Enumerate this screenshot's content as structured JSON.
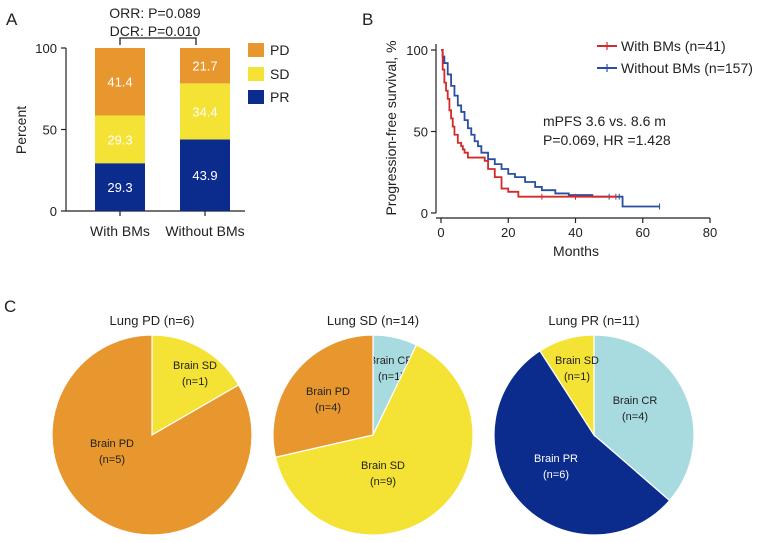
{
  "panels": {
    "a": "A",
    "b": "B",
    "c": "C"
  },
  "colors": {
    "pd": "#E8962E",
    "sd": "#F4E235",
    "pr": "#0B2C8C",
    "cr": "#A8DBE0",
    "with_bms": "#D42A2A",
    "without_bms": "#2A4FA2"
  },
  "chart_data": [
    {
      "type": "bar",
      "stacked": true,
      "ylabel": "Percent",
      "ylim": [
        0,
        100
      ],
      "yticks": [
        "0",
        "50",
        "100"
      ],
      "categories": [
        "With BMs",
        "Without BMs"
      ],
      "series": [
        {
          "name": "PR",
          "values": [
            29.3,
            43.9
          ],
          "labels": [
            "29.3",
            "43.9"
          ]
        },
        {
          "name": "SD",
          "values": [
            29.3,
            34.4
          ],
          "labels": [
            "29.3",
            "34.4"
          ]
        },
        {
          "name": "PD",
          "values": [
            41.4,
            21.7
          ],
          "labels": [
            "41.4",
            "21.7"
          ]
        }
      ],
      "legend": [
        "PD",
        "SD",
        "PR"
      ],
      "annotations": {
        "orr": "ORR: P=0.089",
        "dcr": "DCR: P=0.010"
      }
    },
    {
      "type": "line",
      "xlabel": "Months",
      "ylabel": "Progression-free survival, %",
      "xlim": [
        0,
        80
      ],
      "ylim": [
        0,
        100
      ],
      "xticks": [
        "0",
        "20",
        "40",
        "60",
        "80"
      ],
      "yticks": [
        "0",
        "50",
        "100"
      ],
      "legend": [
        "With BMs (n=41)",
        "Without BMs (n=157)"
      ],
      "annotation_lines": [
        "mPFS 3.6 vs. 8.6 m",
        "P=0.069, HR =1.428"
      ],
      "series": [
        {
          "name": "With BMs (n=41)",
          "x": [
            0,
            0.5,
            1,
            1.5,
            2,
            2.5,
            3,
            3.5,
            4,
            5,
            6,
            6.5,
            7,
            8,
            10,
            12,
            13,
            14,
            16,
            18,
            20,
            23,
            30,
            40,
            52
          ],
          "y": [
            100,
            88,
            80,
            75,
            70,
            63,
            58,
            53,
            48,
            43,
            41,
            39,
            37,
            34,
            34,
            34,
            32,
            27,
            22,
            15,
            13,
            10,
            10,
            10,
            10
          ]
        },
        {
          "name": "Without BMs (n=157)",
          "x": [
            0,
            0.5,
            1,
            2,
            3,
            4,
            5,
            6,
            7,
            8,
            9,
            10,
            11,
            12,
            14,
            16,
            18,
            20,
            22,
            25,
            28,
            30,
            34,
            38,
            45,
            50,
            53,
            54,
            65
          ],
          "y": [
            100,
            96,
            92,
            85,
            78,
            72,
            66,
            62,
            57,
            52,
            48,
            44,
            41,
            37,
            33,
            30,
            27,
            24,
            22,
            19,
            16,
            14,
            12,
            11,
            10,
            10,
            10,
            4,
            4
          ]
        }
      ]
    },
    {
      "type": "pie",
      "title": "Lung PD (n=6)",
      "slices": [
        {
          "name": "Brain SD",
          "n": "(n=1)",
          "value": 1,
          "color_key": "sd"
        },
        {
          "name": "Brain PD",
          "n": "(n=5)",
          "value": 5,
          "color_key": "pd"
        }
      ]
    },
    {
      "type": "pie",
      "title": "Lung SD (n=14)",
      "slices": [
        {
          "name": "Brain CR",
          "n": "(n=1)",
          "value": 1,
          "color_key": "cr"
        },
        {
          "name": "Brain SD",
          "n": "(n=9)",
          "value": 9,
          "color_key": "sd"
        },
        {
          "name": "Brain PD",
          "n": "(n=4)",
          "value": 4,
          "color_key": "pd"
        }
      ]
    },
    {
      "type": "pie",
      "title": "Lung PR (n=11)",
      "slices": [
        {
          "name": "Brain CR",
          "n": "(n=4)",
          "value": 4,
          "color_key": "cr"
        },
        {
          "name": "Brain PR",
          "n": "(n=6)",
          "value": 6,
          "color_key": "pr"
        },
        {
          "name": "Brain SD",
          "n": "(n=1)",
          "value": 1,
          "color_key": "sd"
        }
      ]
    }
  ]
}
